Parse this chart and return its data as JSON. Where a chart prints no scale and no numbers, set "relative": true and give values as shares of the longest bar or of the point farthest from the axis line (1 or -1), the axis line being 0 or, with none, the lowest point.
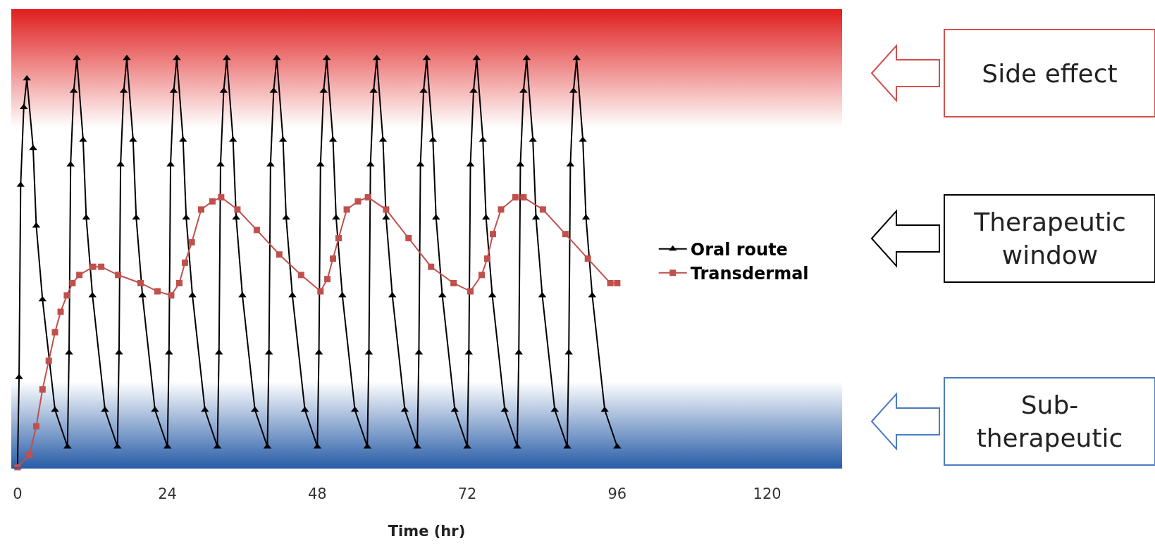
{
  "chart_data": {
    "type": "line",
    "xlabel": "Time (hr)",
    "relative": true,
    "xlim": [
      -1,
      132
    ],
    "xticks": [
      0,
      24,
      48,
      72,
      96,
      120
    ],
    "grid": false,
    "legend": "right",
    "series": [
      {
        "name": "Oral route",
        "color": "#000000",
        "marker": "triangle",
        "x": [
          0,
          0.25,
          0.5,
          1,
          1.5,
          2.5,
          3,
          4,
          6,
          8,
          8.25,
          8.5,
          9,
          9.5,
          10.5,
          11,
          12,
          14,
          16,
          16.25,
          16.5,
          17,
          17.5,
          18.5,
          19,
          20,
          22,
          24,
          24.25,
          24.5,
          25,
          25.5,
          26.5,
          27,
          28,
          30,
          32,
          32.25,
          32.5,
          33,
          33.5,
          34.5,
          35,
          36,
          38,
          40,
          40.25,
          40.5,
          41,
          41.5,
          42.5,
          43,
          44,
          46,
          48,
          48.25,
          48.5,
          49,
          49.5,
          50.5,
          51,
          52,
          54,
          56,
          56.25,
          56.5,
          57,
          57.5,
          58.5,
          59,
          60,
          62,
          64,
          64.25,
          64.5,
          65,
          65.5,
          66.5,
          67,
          68,
          70,
          72,
          72.25,
          72.5,
          73,
          73.5,
          74.5,
          75,
          76,
          78,
          80,
          80.25,
          80.5,
          81,
          81.5,
          82.5,
          83,
          84,
          86,
          88,
          88.25,
          88.5,
          89,
          89.5,
          90.5,
          91,
          92,
          94,
          96
        ],
        "values": [
          0,
          0.22,
          0.69,
          0.88,
          0.95,
          0.78,
          0.59,
          0.41,
          0.14,
          0.05,
          0.28,
          0.74,
          0.92,
          1,
          0.8,
          0.61,
          0.42,
          0.14,
          0.05,
          0.28,
          0.74,
          0.92,
          1,
          0.8,
          0.61,
          0.42,
          0.14,
          0.05,
          0.28,
          0.74,
          0.92,
          1,
          0.8,
          0.61,
          0.42,
          0.14,
          0.05,
          0.28,
          0.74,
          0.92,
          1,
          0.8,
          0.61,
          0.42,
          0.14,
          0.05,
          0.28,
          0.74,
          0.92,
          1,
          0.8,
          0.61,
          0.42,
          0.14,
          0.05,
          0.28,
          0.74,
          0.92,
          1,
          0.8,
          0.61,
          0.42,
          0.14,
          0.05,
          0.28,
          0.74,
          0.92,
          1,
          0.8,
          0.61,
          0.42,
          0.14,
          0.05,
          0.28,
          0.74,
          0.92,
          1,
          0.8,
          0.61,
          0.42,
          0.14,
          0.05,
          0.28,
          0.74,
          0.92,
          1,
          0.8,
          0.61,
          0.42,
          0.14,
          0.05,
          0.28,
          0.74,
          0.92,
          1,
          0.8,
          0.61,
          0.42,
          0.14,
          0.05,
          0.28,
          0.74,
          0.92,
          1,
          0.8,
          0.61,
          0.42,
          0.14,
          0.05
        ]
      },
      {
        "name": "Transdermal",
        "color": "#c0504d",
        "marker": "square",
        "x": [
          0,
          1.9,
          3,
          4,
          5,
          6,
          6.9,
          7.9,
          8.8,
          9.9,
          12.1,
          13.4,
          16.1,
          19.7,
          22.4,
          24.6,
          25.9,
          26.8,
          27.9,
          29.4,
          31.2,
          32.6,
          35.2,
          38.3,
          41.9,
          45.4,
          48.5,
          49.6,
          50.5,
          51.4,
          52.7,
          54.5,
          56.1,
          59,
          62.6,
          66.2,
          69.8,
          72.5,
          74.3,
          75.2,
          76.1,
          77.4,
          79.7,
          81,
          84.1,
          87.7,
          91.3,
          94.9,
          96
        ],
        "values": [
          0,
          0.03,
          0.1,
          0.19,
          0.26,
          0.33,
          0.38,
          0.42,
          0.45,
          0.47,
          0.49,
          0.49,
          0.47,
          0.45,
          0.43,
          0.42,
          0.45,
          0.5,
          0.55,
          0.63,
          0.65,
          0.66,
          0.63,
          0.58,
          0.52,
          0.47,
          0.43,
          0.46,
          0.51,
          0.56,
          0.63,
          0.65,
          0.66,
          0.63,
          0.56,
          0.49,
          0.45,
          0.43,
          0.47,
          0.51,
          0.57,
          0.63,
          0.66,
          0.66,
          0.63,
          0.57,
          0.51,
          0.45,
          0.45
        ]
      }
    ],
    "bands": [
      {
        "axis": "y",
        "from": 0.83,
        "to": 1.12,
        "color": "#e01e1e"
      },
      {
        "axis": "y",
        "from": 0,
        "to": 0.21,
        "color": "#2a5ea8"
      }
    ],
    "annotations": [
      "Side effect",
      "Therapeutic window",
      "Sub-therapeutic"
    ]
  }
}
